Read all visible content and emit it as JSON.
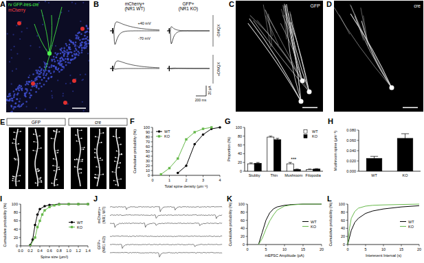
{
  "panels": {
    "A": {
      "label": "A",
      "lines": [
        "rv GFP-ires-cre",
        "mCherry"
      ]
    },
    "B": {
      "label": "B",
      "columns": [
        [
          "mCherry+",
          "(NR1 WT)"
        ],
        [
          "GFP+",
          "(NR1 KO)"
        ]
      ],
      "holding": [
        "+40 mV",
        "-70 mV"
      ],
      "conditions": [
        "-DNQX",
        "+DNQX"
      ],
      "scale_bar": [
        "20 pA",
        "200 ms"
      ]
    },
    "C": {
      "label": "C",
      "stain": "GFP"
    },
    "D": {
      "label": "D",
      "stain": "cre"
    },
    "E": {
      "label": "E",
      "groups": [
        "GFP",
        "cre"
      ]
    },
    "J": {
      "label": "J",
      "rows": [
        [
          "mCherry+",
          "(NR1 WT)"
        ],
        [
          "GFP+",
          "(NR1 KO)"
        ]
      ]
    }
  },
  "chart_data": [
    {
      "title": "F",
      "type": "line",
      "x_label": "Total spine density (µm⁻¹)",
      "y_label": "Cumulative probability (%)",
      "series": [
        {
          "name": "WT",
          "color": "#000000",
          "marker": "circle",
          "x": [
            1.5,
            2,
            2.5,
            3,
            3.5,
            4
          ],
          "values": [
            5,
            20,
            65,
            85,
            97,
            100
          ]
        },
        {
          "name": "KO",
          "color": "#66b84a",
          "marker": "square",
          "x": [
            0.5,
            1,
            1.5,
            2,
            2.5,
            3,
            3.5
          ],
          "values": [
            2,
            15,
            35,
            75,
            90,
            97,
            100
          ]
        }
      ],
      "xlim": [
        0,
        4
      ],
      "xticks": [
        0,
        1,
        2,
        3,
        4
      ],
      "ylim": [
        0,
        100
      ],
      "yticks": [
        0,
        10,
        20,
        30,
        40,
        50,
        60,
        70,
        80,
        90,
        100
      ],
      "legend": "upper left"
    },
    {
      "title": "G",
      "type": "bar",
      "y_label": "Proportion (%)",
      "categories": [
        "Stubby",
        "Thin",
        "Mushroom",
        "Filopodia"
      ],
      "series": [
        {
          "name": "WT",
          "color": "#ffffff",
          "values": [
            17,
            78,
            17,
            4
          ],
          "errors": [
            2,
            2,
            3,
            1
          ]
        },
        {
          "name": "KO",
          "color": "#000000",
          "values": [
            18,
            72,
            4,
            5
          ],
          "errors": [
            2,
            3,
            1,
            1
          ]
        }
      ],
      "ylim": [
        0,
        100
      ],
      "yticks": [
        0,
        20,
        40,
        60,
        80,
        100
      ],
      "legend": "upper right",
      "annotations": [
        {
          "text": "***",
          "category": "Mushroom"
        }
      ]
    },
    {
      "title": "H",
      "type": "bar",
      "y_label": "Mushroom spine (µm⁻¹)",
      "categories": [
        "WT",
        "KO"
      ],
      "values": [
        0.025,
        0.064
      ],
      "errors": [
        0.004,
        0.009
      ],
      "color": "#000000",
      "ylim": [
        0,
        0.08
      ],
      "yticks": [
        {
          "value": 0,
          "label": "0.000"
        },
        {
          "value": 0.02,
          "label": "0.020"
        },
        {
          "value": 0.04,
          "label": "0.040"
        },
        {
          "value": 0.06,
          "label": "0.060"
        },
        {
          "value": 0.08,
          "label": "0.080"
        }
      ]
    },
    {
      "title": "I",
      "type": "line",
      "x_label": "Spine size (µm²)",
      "y_label": "Cumulative probability (%)",
      "series": [
        {
          "name": "WT",
          "color": "#000000",
          "marker": "circle",
          "x": [
            0.2,
            0.25,
            0.3,
            0.35,
            0.4,
            0.5,
            0.6,
            0.8,
            1.0,
            1.2,
            1.4
          ],
          "values": [
            2,
            15,
            50,
            75,
            88,
            95,
            98,
            100,
            100,
            100,
            100
          ]
        },
        {
          "name": "KO",
          "color": "#66b84a",
          "marker": "square",
          "x": [
            0.2,
            0.3,
            0.35,
            0.4,
            0.45,
            0.5,
            0.6,
            0.7,
            0.8,
            1.0,
            1.2,
            1.4
          ],
          "values": [
            0,
            20,
            45,
            60,
            75,
            85,
            93,
            97,
            99,
            100,
            100,
            100
          ]
        }
      ],
      "xlim": [
        0,
        1.4
      ],
      "xticks": [
        {
          "value": 0,
          "label": "0.0"
        },
        0.2,
        0.4,
        0.6,
        0.8,
        {
          "value": 1,
          "label": "1.0"
        },
        1.2,
        1.4
      ],
      "ylim": [
        0,
        100
      ],
      "yticks": [
        0,
        20,
        40,
        60,
        80,
        100
      ],
      "legend": "right"
    },
    {
      "title": "K",
      "type": "line",
      "x_label": "mEPSC Amplitude (pA)",
      "y_label": "Cumulative probability (%)",
      "series": [
        {
          "name": "WT",
          "color": "#000000",
          "x": [
            3,
            4,
            5,
            6,
            7,
            8,
            10,
            12,
            15,
            20
          ],
          "values": [
            0,
            30,
            60,
            78,
            88,
            93,
            97,
            99,
            100,
            100
          ]
        },
        {
          "name": "KO",
          "color": "#66b84a",
          "x": [
            3,
            4,
            5,
            6,
            7,
            8,
            10,
            12,
            15,
            20
          ],
          "values": [
            0,
            15,
            38,
            58,
            73,
            85,
            95,
            98,
            100,
            100
          ]
        }
      ],
      "xlim": [
        0,
        20
      ],
      "xticks": [
        0,
        5,
        10,
        15,
        20
      ],
      "ylim": [
        0,
        100
      ],
      "yticks": [
        0,
        20,
        40,
        60,
        80,
        100
      ],
      "legend": "right"
    },
    {
      "title": "L",
      "type": "line",
      "x_label": "Interevent Interval (s)",
      "y_label": "Cumulative probability (%)",
      "series": [
        {
          "name": "WT",
          "color": "#000000",
          "x": [
            0,
            1,
            2,
            3,
            5,
            7,
            10,
            15,
            20
          ],
          "values": [
            0,
            35,
            55,
            65,
            77,
            83,
            88,
            93,
            96
          ]
        },
        {
          "name": "KO",
          "color": "#66b84a",
          "x": [
            0,
            0.5,
            1,
            2,
            3,
            5,
            7,
            10,
            15,
            20
          ],
          "values": [
            0,
            40,
            65,
            82,
            90,
            95,
            97,
            98,
            99,
            100
          ]
        }
      ],
      "xlim": [
        0,
        20
      ],
      "xticks": [
        0,
        5,
        10,
        15,
        20
      ],
      "ylim": [
        0,
        100
      ],
      "yticks": [
        0,
        20,
        40,
        60,
        80,
        100
      ],
      "legend": "right"
    }
  ]
}
